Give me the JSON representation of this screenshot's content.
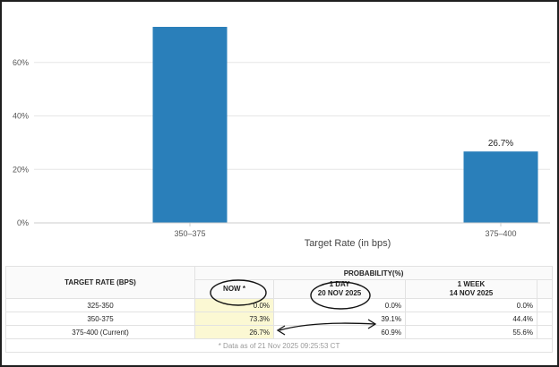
{
  "chart_data": {
    "type": "bar",
    "categories": [
      "350–375",
      "375–400"
    ],
    "values": [
      73.3,
      26.7
    ],
    "data_labels": [
      "",
      "26.7%"
    ],
    "xlabel": "Target Rate (in bps)",
    "ylabel": "",
    "ylim": [
      0,
      80
    ],
    "yticks": [
      "0%",
      "20%",
      "40%",
      "60%"
    ],
    "ytick_values": [
      0,
      20,
      40,
      60
    ],
    "grid": true,
    "bar_color": "#2a7fba"
  },
  "table": {
    "col_target": "TARGET RATE (BPS)",
    "col_probability": "PROBABILITY(%)",
    "col_now": "NOW *",
    "col_1day": "1 DAY",
    "col_1day_date": "20 NOV 2025",
    "col_1week": "1 WEEK",
    "col_1week_date": "14 NOV 2025",
    "rows": [
      {
        "rate": "325-350",
        "now": "0.0%",
        "day1": "0.0%",
        "week1": "0.0%"
      },
      {
        "rate": "350-375",
        "now": "73.3%",
        "day1": "39.1%",
        "week1": "44.4%"
      },
      {
        "rate": "375-400 (Current)",
        "now": "26.7%",
        "day1": "60.9%",
        "week1": "55.6%"
      }
    ],
    "footnote": "* Data as of 21 Nov 2025 09:25:53 CT"
  },
  "colors": {
    "now_highlight": "#fbf8d3",
    "frame": "#1f1f1f",
    "annotation_ink": "#111111"
  }
}
